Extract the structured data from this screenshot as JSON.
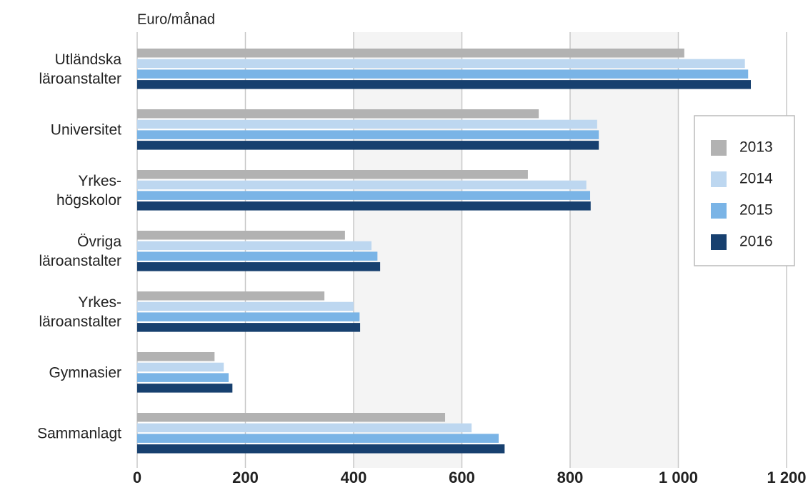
{
  "chart_data": {
    "type": "bar",
    "orientation": "horizontal",
    "unit_label": "Euro/månad",
    "categories": [
      "Utländska\nläroanstalter",
      "Universitet",
      "Yrkes-\nhögskolor",
      "Övriga\nläroanstalter",
      "Yrkes-\nläroanstalter",
      "Gymnasier",
      "Sammanlagt"
    ],
    "series": [
      {
        "name": "2013",
        "color": "#b2b2b2",
        "values": [
          1011,
          742,
          722,
          384,
          346,
          143,
          569
        ]
      },
      {
        "name": "2014",
        "color": "#bdd7f0",
        "values": [
          1123,
          850,
          830,
          433,
          400,
          160,
          618
        ]
      },
      {
        "name": "2015",
        "color": "#7ab4e6",
        "values": [
          1129,
          853,
          837,
          444,
          411,
          169,
          668
        ]
      },
      {
        "name": "2016",
        "color": "#17406f",
        "values": [
          1134,
          853,
          838,
          449,
          412,
          176,
          679
        ]
      }
    ],
    "xlim": [
      0,
      1200
    ],
    "xticks": [
      0,
      200,
      400,
      600,
      800,
      {
        "value": 1000,
        "label": "1 000"
      },
      {
        "value": 1200,
        "label": "1 200"
      }
    ],
    "grid": true,
    "legend": "right"
  }
}
